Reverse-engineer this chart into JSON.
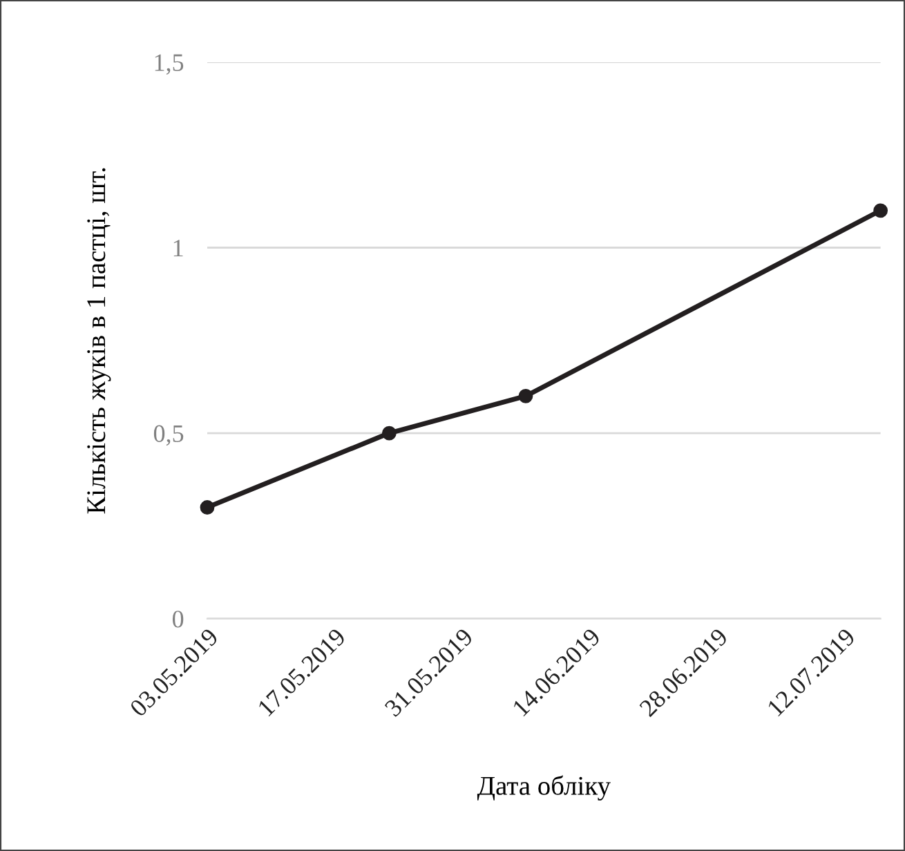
{
  "chart_data": {
    "type": "line",
    "xlabel": "Дата обліку",
    "ylabel": "Кількість жуків в 1 пастці, шт.",
    "x": [
      "2019-05-03",
      "2019-05-23",
      "2019-06-07",
      "2019-07-16"
    ],
    "series": [
      {
        "color": "#231f20",
        "values": [
          0.3,
          0.5,
          0.6,
          1.1
        ]
      }
    ],
    "marker": "circle",
    "line_style": "solid",
    "grid": "y",
    "xlim": [
      "2019-05-03",
      "2019-07-16"
    ],
    "xticks": [
      {
        "value": "2019-05-03",
        "label": "03.05.2019"
      },
      {
        "value": "2019-05-17",
        "label": "17.05.2019"
      },
      {
        "value": "2019-05-31",
        "label": "31.05.2019"
      },
      {
        "value": "2019-06-14",
        "label": "14.06.2019"
      },
      {
        "value": "2019-06-28",
        "label": "28.06.2019"
      },
      {
        "value": "2019-07-12",
        "label": "12.07.2019"
      }
    ],
    "ylim": [
      0,
      1.5
    ],
    "yticks": [
      {
        "value": 0,
        "label": "0"
      },
      {
        "value": 0.5,
        "label": "0,5"
      },
      {
        "value": 1,
        "label": "1"
      },
      {
        "value": 1.5,
        "label": "1,5"
      }
    ]
  }
}
